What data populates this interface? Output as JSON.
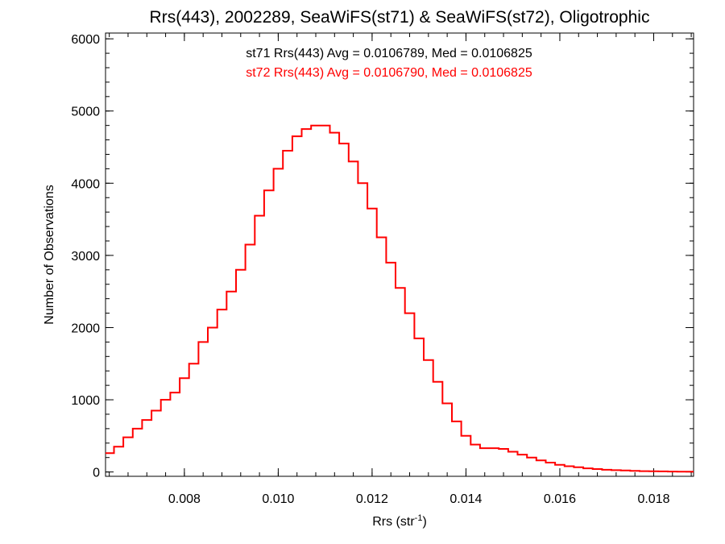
{
  "chart_data": {
    "type": "line",
    "title": "Rrs(443), 2002289, SeaWiFS(st71) & SeaWiFS(st72), Oligotrophic",
    "xlabel": "Rrs (str",
    "xlabel_sup": "-1",
    "xlabel_close": ")",
    "ylabel": "Number of Observations",
    "xlim": [
      0.00632,
      0.01885
    ],
    "ylim": [
      -60,
      6080
    ],
    "x_ticks": [
      0.008,
      0.01,
      0.012,
      0.014,
      0.016,
      0.018
    ],
    "x_tick_labels": [
      "0.008",
      "0.010",
      "0.012",
      "0.014",
      "0.016",
      "0.018"
    ],
    "x_minor_step": 0.0004,
    "y_ticks": [
      0,
      1000,
      2000,
      3000,
      4000,
      5000,
      6000
    ],
    "y_tick_labels": [
      "0",
      "1000",
      "2000",
      "3000",
      "4000",
      "5000",
      "6000"
    ],
    "y_minor_step": 200,
    "grid": false,
    "annotations": [
      {
        "text": "st71 Rrs(443) Avg = 0.0106789, Med = 0.0106825",
        "color": "#000000"
      },
      {
        "text": "st72 Rrs(443) Avg = 0.0106790, Med = 0.0106825",
        "color": "#ff0000"
      }
    ],
    "series": [
      {
        "style": "histogram-step",
        "color": "#ff0000",
        "x": [
          0.00632,
          0.0065,
          0.0067,
          0.0069,
          0.0071,
          0.0073,
          0.0075,
          0.0077,
          0.0079,
          0.0081,
          0.0083,
          0.0085,
          0.0087,
          0.0089,
          0.0091,
          0.0093,
          0.0095,
          0.0097,
          0.0099,
          0.0101,
          0.0103,
          0.0105,
          0.0107,
          0.0109,
          0.0111,
          0.0113,
          0.0115,
          0.0117,
          0.0119,
          0.0121,
          0.0123,
          0.0125,
          0.0127,
          0.0129,
          0.0131,
          0.0133,
          0.0135,
          0.0137,
          0.0139,
          0.0141,
          0.0143,
          0.0145,
          0.0147,
          0.0149,
          0.0151,
          0.0153,
          0.0155,
          0.0157,
          0.0159,
          0.0161,
          0.0163,
          0.0165,
          0.0167,
          0.0169,
          0.0171,
          0.0173,
          0.0175,
          0.0177,
          0.0179,
          0.0181,
          0.0183,
          0.0185,
          0.0187,
          0.01885
        ],
        "y": [
          260,
          350,
          480,
          600,
          720,
          850,
          1000,
          1100,
          1300,
          1500,
          1800,
          2000,
          2250,
          2500,
          2800,
          3150,
          3550,
          3900,
          4200,
          4450,
          4650,
          4750,
          4800,
          4800,
          4700,
          4550,
          4300,
          4000,
          3650,
          3250,
          2900,
          2550,
          2200,
          1850,
          1550,
          1250,
          950,
          700,
          500,
          380,
          330,
          330,
          320,
          280,
          240,
          200,
          160,
          130,
          100,
          80,
          65,
          50,
          40,
          30,
          25,
          20,
          15,
          12,
          10,
          8,
          6,
          5,
          5,
          5
        ]
      }
    ]
  }
}
